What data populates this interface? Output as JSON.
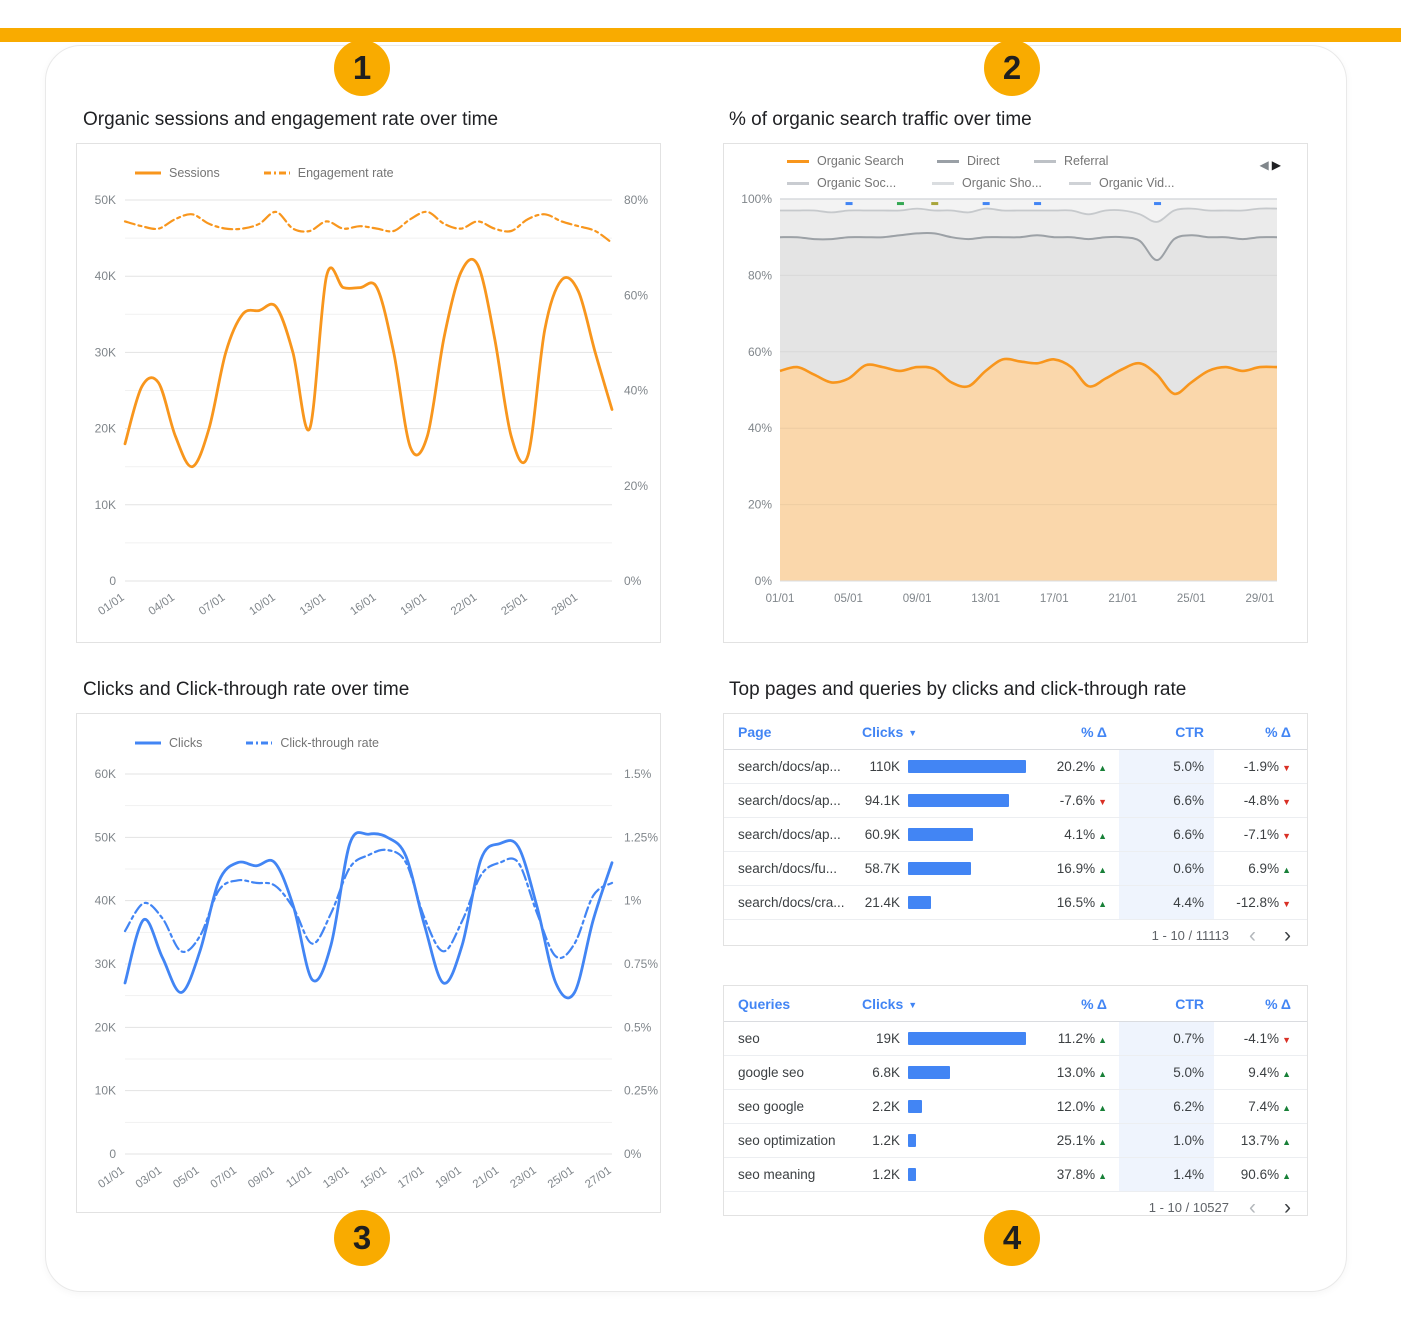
{
  "page": {
    "badges": [
      "1",
      "2",
      "3",
      "4"
    ],
    "colors": {
      "accent_gold": "#F9AB00",
      "orange": "#F8961D",
      "orange_fill": "#FAD7AB",
      "blue": "#4285F4",
      "green": "#188038",
      "red": "#D93025",
      "axis_gray": "#80868B"
    },
    "icons": {
      "prev": "◀",
      "next": "▶",
      "sort_desc": "▼",
      "trend_up": "▲",
      "trend_down": "▼",
      "page_prev": "‹",
      "page_next": "›"
    }
  },
  "panel1": {
    "title": "Organic sessions and engagement rate over time",
    "legend": [
      {
        "label": "Sessions",
        "style": "solid"
      },
      {
        "label": "Engagement rate",
        "style": "dashdot"
      }
    ]
  },
  "panel2": {
    "title": "% of organic search traffic over time",
    "legend_row1": [
      {
        "label": "Organic Search",
        "color": "#F8961D"
      },
      {
        "label": "Direct",
        "color": "#9AA0A6"
      },
      {
        "label": "Referral",
        "color": "#BDC1C6"
      }
    ],
    "legend_row2": [
      {
        "label": "Organic Soc...",
        "color": "#C9CCD1"
      },
      {
        "label": "Organic Sho...",
        "color": "#DADDE0"
      },
      {
        "label": "Organic Vid...",
        "color": "#CFD2D6"
      }
    ]
  },
  "panel3": {
    "title": "Clicks and Click-through rate over time",
    "legend": [
      {
        "label": "Clicks",
        "style": "solid"
      },
      {
        "label": "Click-through rate",
        "style": "dashdot"
      }
    ]
  },
  "panel4": {
    "title": "Top pages and queries by clicks and click-through rate"
  },
  "chart_data": [
    {
      "id": "sessions_engagement",
      "type": "line",
      "title": "Organic sessions and engagement rate over time",
      "x_tick_labels": [
        "01/01",
        "04/01",
        "07/01",
        "10/01",
        "13/01",
        "16/01",
        "19/01",
        "22/01",
        "25/01",
        "28/01"
      ],
      "x_tick_every": 3,
      "left_axis": {
        "min": 0,
        "max": 50,
        "tick_labels": [
          "0",
          "10K",
          "20K",
          "30K",
          "40K",
          "50K"
        ]
      },
      "right_axis": {
        "min": 0,
        "max": 80,
        "tick_labels": [
          "0%",
          "20%",
          "40%",
          "60%",
          "80%"
        ]
      },
      "series": [
        {
          "name": "Sessions",
          "axis": "left",
          "style": "solid",
          "values": [
            18,
            25.5,
            26,
            19,
            15,
            20,
            30,
            35,
            35.5,
            36,
            30,
            20,
            40,
            38.5,
            38.5,
            38.5,
            30,
            17.5,
            19,
            32,
            40.5,
            41.5,
            32,
            19,
            16.5,
            33,
            39.5,
            38,
            30,
            22.5
          ]
        },
        {
          "name": "Engagement rate",
          "axis": "right",
          "style": "dashdot",
          "values": [
            75.5,
            74.5,
            74,
            76,
            77,
            75,
            74,
            74,
            75,
            77.5,
            74,
            73.5,
            75.5,
            74,
            74.5,
            74,
            73.5,
            76,
            77.5,
            75,
            74,
            75.5,
            74,
            73.5,
            76,
            77,
            75.5,
            74.5,
            73.5,
            71
          ]
        }
      ]
    },
    {
      "id": "organic_traffic_share",
      "type": "area",
      "title": "% of organic search traffic over time",
      "x_tick_labels": [
        "01/01",
        "05/01",
        "09/01",
        "13/01",
        "17/01",
        "21/01",
        "25/01",
        "29/01"
      ],
      "x_tick_every": 4,
      "y_axis": {
        "min": 0,
        "max": 100,
        "tick_labels": [
          "0%",
          "20%",
          "40%",
          "60%",
          "80%",
          "100%"
        ]
      },
      "series": [
        {
          "name": "Organic Search",
          "boundary": [
            55,
            56,
            54,
            52,
            53,
            56.5,
            56,
            55,
            56,
            55.5,
            52,
            51,
            55,
            58,
            57.5,
            57,
            58,
            56,
            51,
            53,
            55.5,
            57,
            54,
            49,
            52,
            55,
            56,
            55,
            56,
            56
          ]
        },
        {
          "name": "Direct",
          "boundary": [
            90,
            90,
            89.5,
            89.5,
            90,
            90,
            90,
            90.5,
            91,
            91,
            90,
            89.5,
            90,
            90,
            90,
            90.5,
            90,
            90,
            89.5,
            90,
            90,
            89,
            84,
            89.5,
            90.5,
            90,
            90,
            89.5,
            90,
            90
          ]
        },
        {
          "name": "Referral",
          "boundary": [
            97,
            97,
            97,
            96.5,
            97,
            97,
            97,
            97,
            97.5,
            97,
            97,
            96.5,
            97.5,
            97,
            97,
            97,
            97,
            97,
            96,
            97,
            97,
            96,
            94,
            97,
            97.5,
            97,
            97,
            97,
            97.5,
            97.5
          ]
        }
      ],
      "top_markers": [
        {
          "i": 4,
          "color": "#4285F4"
        },
        {
          "i": 7,
          "color": "#34A853"
        },
        {
          "i": 9,
          "color": "#A8A53A"
        },
        {
          "i": 12,
          "color": "#4285F4"
        },
        {
          "i": 15,
          "color": "#4285F4"
        },
        {
          "i": 22,
          "color": "#4285F4"
        }
      ]
    },
    {
      "id": "clicks_ctr",
      "type": "line",
      "title": "Clicks and Click-through rate over time",
      "x_tick_labels": [
        "01/01",
        "03/01",
        "05/01",
        "07/01",
        "09/01",
        "11/01",
        "13/01",
        "15/01",
        "17/01",
        "19/01",
        "21/01",
        "23/01",
        "25/01",
        "27/01"
      ],
      "x_tick_every": 2,
      "left_axis": {
        "min": 0,
        "max": 60,
        "tick_labels": [
          "0",
          "10K",
          "20K",
          "30K",
          "40K",
          "50K",
          "60K"
        ]
      },
      "right_axis": {
        "min": 0,
        "max": 1.5,
        "tick_labels": [
          "0%",
          "0.25%",
          "0.5%",
          "0.75%",
          "1%",
          "1.25%",
          "1.5%"
        ]
      },
      "series": [
        {
          "name": "Clicks",
          "axis": "left",
          "style": "solid",
          "values": [
            27,
            37,
            31,
            25.5,
            32,
            43,
            46,
            45.5,
            46,
            39,
            27.5,
            33,
            49,
            50.5,
            50,
            47,
            36,
            27,
            33,
            46.5,
            49,
            48.5,
            39,
            27,
            25.5,
            37,
            46
          ]
        },
        {
          "name": "Click-through rate",
          "axis": "right",
          "style": "dashdot",
          "values": [
            0.88,
            0.99,
            0.93,
            0.8,
            0.86,
            1.04,
            1.08,
            1.07,
            1.06,
            0.97,
            0.83,
            0.95,
            1.13,
            1.18,
            1.2,
            1.15,
            0.93,
            0.8,
            0.92,
            1.1,
            1.15,
            1.15,
            0.95,
            0.78,
            0.83,
            1.02,
            1.07
          ]
        }
      ]
    },
    {
      "id": "top_pages",
      "type": "table",
      "headers": [
        "Page",
        "Clicks",
        "% Δ",
        "CTR",
        "% Δ"
      ],
      "sorted_by": "Clicks",
      "rows": [
        {
          "label": "search/docs/ap...",
          "clicks_label": "110K",
          "clicks": 110,
          "delta_clicks": "20.2%",
          "delta_clicks_dir": "up",
          "ctr": "5.0%",
          "delta_ctr": "-1.9%",
          "delta_ctr_dir": "down"
        },
        {
          "label": "search/docs/ap...",
          "clicks_label": "94.1K",
          "clicks": 94.1,
          "delta_clicks": "-7.6%",
          "delta_clicks_dir": "down",
          "ctr": "6.6%",
          "delta_ctr": "-4.8%",
          "delta_ctr_dir": "down"
        },
        {
          "label": "search/docs/ap...",
          "clicks_label": "60.9K",
          "clicks": 60.9,
          "delta_clicks": "4.1%",
          "delta_clicks_dir": "up",
          "ctr": "6.6%",
          "delta_ctr": "-7.1%",
          "delta_ctr_dir": "down"
        },
        {
          "label": "search/docs/fu...",
          "clicks_label": "58.7K",
          "clicks": 58.7,
          "delta_clicks": "16.9%",
          "delta_clicks_dir": "up",
          "ctr": "0.6%",
          "delta_ctr": "6.9%",
          "delta_ctr_dir": "up"
        },
        {
          "label": "search/docs/cra...",
          "clicks_label": "21.4K",
          "clicks": 21.4,
          "delta_clicks": "16.5%",
          "delta_clicks_dir": "up",
          "ctr": "4.4%",
          "delta_ctr": "-12.8%",
          "delta_ctr_dir": "down"
        }
      ],
      "pagination": "1 - 10 / 11113"
    },
    {
      "id": "top_queries",
      "type": "table",
      "headers": [
        "Queries",
        "Clicks",
        "% Δ",
        "CTR",
        "% Δ"
      ],
      "sorted_by": "Clicks",
      "rows": [
        {
          "label": "seo",
          "clicks_label": "19K",
          "clicks": 19,
          "delta_clicks": "11.2%",
          "delta_clicks_dir": "up",
          "ctr": "0.7%",
          "delta_ctr": "-4.1%",
          "delta_ctr_dir": "down"
        },
        {
          "label": "google seo",
          "clicks_label": "6.8K",
          "clicks": 6.8,
          "delta_clicks": "13.0%",
          "delta_clicks_dir": "up",
          "ctr": "5.0%",
          "delta_ctr": "9.4%",
          "delta_ctr_dir": "up"
        },
        {
          "label": "seo google",
          "clicks_label": "2.2K",
          "clicks": 2.2,
          "delta_clicks": "12.0%",
          "delta_clicks_dir": "up",
          "ctr": "6.2%",
          "delta_ctr": "7.4%",
          "delta_ctr_dir": "up"
        },
        {
          "label": "seo optimization",
          "clicks_label": "1.2K",
          "clicks": 1.2,
          "delta_clicks": "25.1%",
          "delta_clicks_dir": "up",
          "ctr": "1.0%",
          "delta_ctr": "13.7%",
          "delta_ctr_dir": "up"
        },
        {
          "label": "seo meaning",
          "clicks_label": "1.2K",
          "clicks": 1.2,
          "delta_clicks": "37.8%",
          "delta_clicks_dir": "up",
          "ctr": "1.4%",
          "delta_ctr": "90.6%",
          "delta_ctr_dir": "up"
        }
      ],
      "pagination": "1 - 10 / 10527"
    }
  ]
}
